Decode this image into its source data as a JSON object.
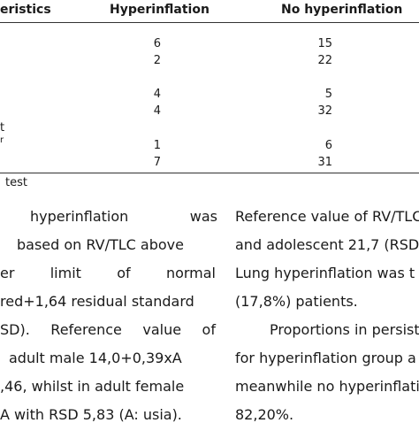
{
  "table": {
    "headers": [
      "eristics",
      "Hyperinflation",
      "No hyperinflation"
    ],
    "row_labels": [
      "t",
      "r"
    ],
    "rows": [
      [
        "6",
        "15"
      ],
      [
        "2",
        "22"
      ],
      [
        "4",
        "5"
      ],
      [
        "4",
        "32"
      ],
      [
        "1",
        "6"
      ],
      [
        "7",
        "31"
      ]
    ],
    "footnote": "test"
  },
  "left_column": [
    "hyperinflation was",
    "based on RV/TLC above",
    "er limit of normal",
    "red+1,64 residual standard",
    "SD). Reference value of",
    "adult male 14,0+0,39xA",
    ",46, whilst in adult female",
    "A with RSD 5,83 (A: usia)."
  ],
  "right_column": [
    "Reference value of RV/TLC",
    "and adolescent 21,7 (RSD=",
    "Lung hyperinflation was t",
    "(17,8%) patients.",
    "Proportions in persist",
    "for hyperinflation group a",
    "meanwhile no hyperinflatio",
    "82,20%."
  ]
}
